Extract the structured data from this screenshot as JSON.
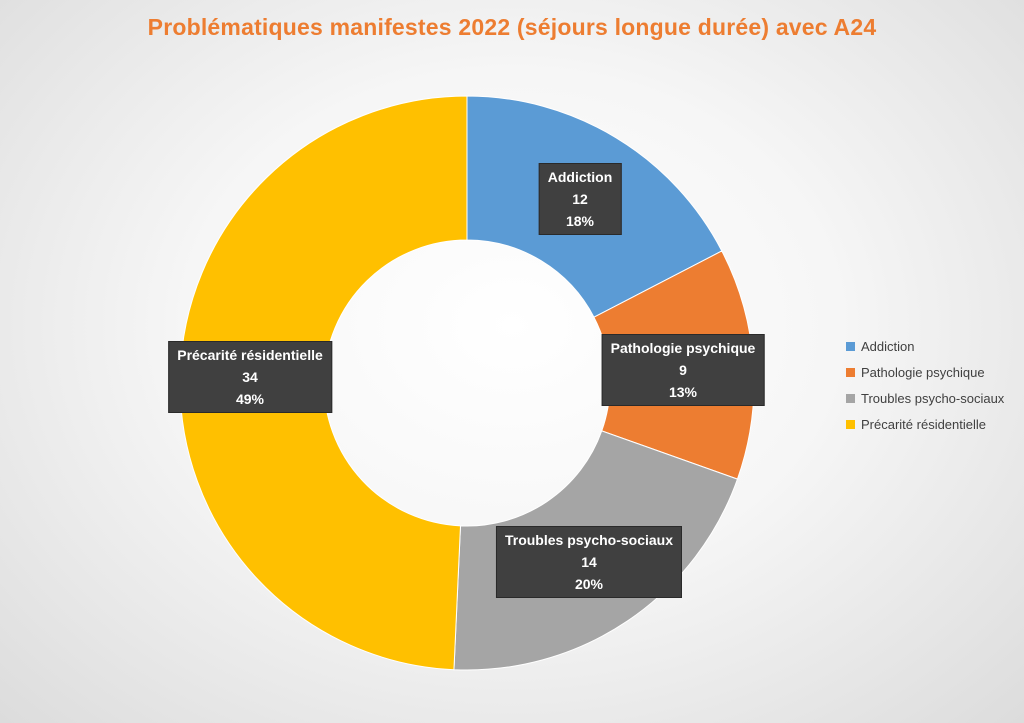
{
  "chart_data": {
    "type": "pie",
    "variant": "donut",
    "title": "Problématiques manifestes 2022 (séjours longue durée) avec A24",
    "title_color": "#ED7D31",
    "categories": [
      "Addiction",
      "Pathologie psychique",
      "Troubles psycho-sociaux",
      "Précarité résidentielle"
    ],
    "values": [
      12,
      9,
      14,
      34
    ],
    "percent_labels": [
      "18%",
      "13%",
      "20%",
      "49%"
    ],
    "colors": [
      "#5B9BD5",
      "#ED7D31",
      "#A5A5A5",
      "#FFC000"
    ],
    "legend_position": "right",
    "data_labels": true
  }
}
